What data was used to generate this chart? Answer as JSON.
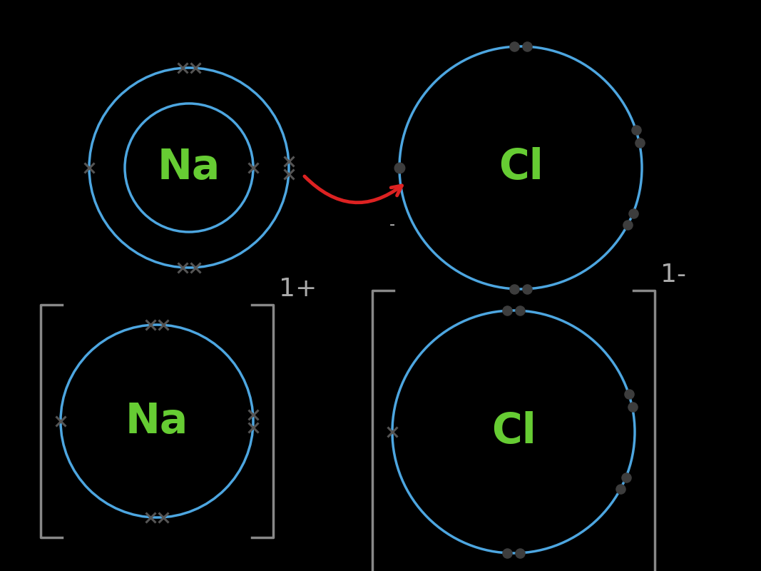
{
  "bg_color": "#000000",
  "circle_color": "#4da6e0",
  "element_color": "#66cc33",
  "electron_dot_color": "#3d3d3d",
  "electron_x_color": "#555555",
  "bracket_color": "#888888",
  "charge_color": "#aaaaaa",
  "minus_color": "#cccccc",
  "arrow_color": "#dd2222",
  "na_label": "Na",
  "cl_label": "Cl",
  "charge_plus": "1+",
  "charge_minus": "1-",
  "minus_sign": "-"
}
